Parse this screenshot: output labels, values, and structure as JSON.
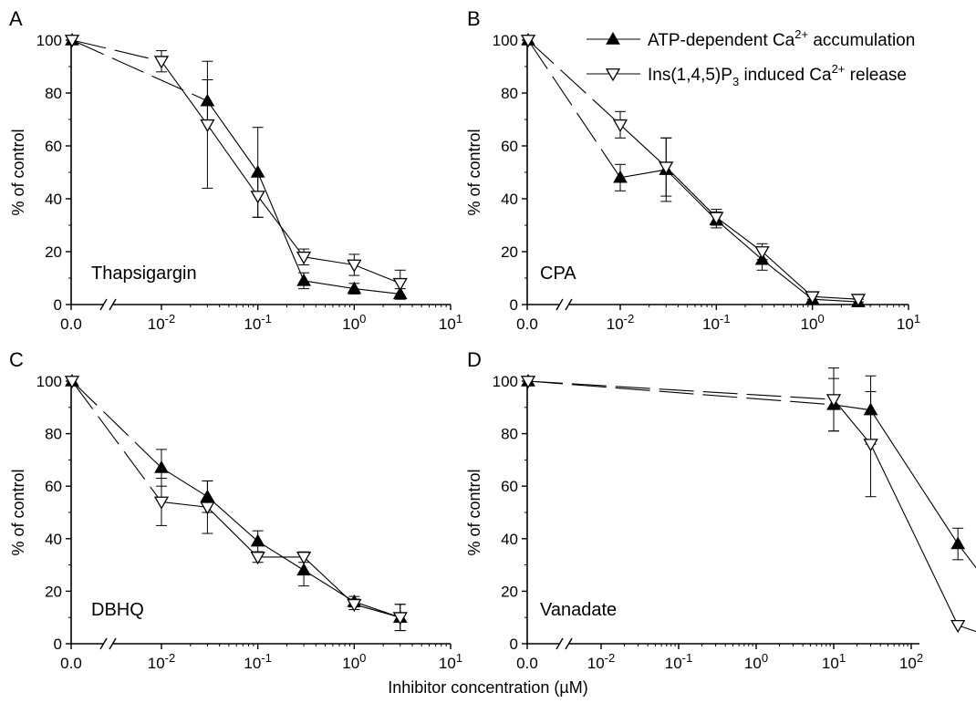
{
  "figure": {
    "xlabel": "Inhibitor concentration (µM)",
    "legend": {
      "placement": "top-right of panel B",
      "entries": [
        {
          "series": "atp",
          "prefix": "ATP-dependent Ca",
          "sup": "2+",
          "suffix": " accumulation",
          "marker": "filled-up-triangle"
        },
        {
          "series": "ins",
          "prefix": "Ins(1,4,5)P",
          "sub": "3",
          "mid": " induced Ca",
          "sup": "2+",
          "suffix": " release",
          "marker": "open-down-triangle"
        }
      ]
    }
  },
  "chart_data": [
    {
      "type": "line",
      "panel": "A",
      "title": "Thapsigargin",
      "ylabel": "% of control",
      "xscale": "log with broken axis at 0.0",
      "xlim": [
        0.005,
        10
      ],
      "ylim": [
        0,
        100
      ],
      "xticks": [
        {
          "base": "0.0",
          "exp": ""
        },
        {
          "base": "10",
          "exp": "-2"
        },
        {
          "base": "10",
          "exp": "-1"
        },
        {
          "base": "10",
          "exp": "0"
        },
        {
          "base": "10",
          "exp": "1"
        }
      ],
      "yticks": [
        "0",
        "20",
        "40",
        "60",
        "80",
        "100"
      ],
      "series": [
        {
          "key": "atp",
          "points": [
            {
              "x": 0,
              "y": 100,
              "err": 0
            },
            {
              "x": 0.03,
              "y": 77,
              "err": 8
            },
            {
              "x": 0.1,
              "y": 50,
              "err": 17
            },
            {
              "x": 0.3,
              "y": 9,
              "err": 3
            },
            {
              "x": 1,
              "y": 6,
              "err": 2
            },
            {
              "x": 3,
              "y": 4,
              "err": 2
            }
          ]
        },
        {
          "key": "ins",
          "points": [
            {
              "x": 0,
              "y": 100,
              "err": 0
            },
            {
              "x": 0.01,
              "y": 92,
              "err": 4
            },
            {
              "x": 0.03,
              "y": 68,
              "err": 24
            },
            {
              "x": 0.1,
              "y": 41,
              "err": 8
            },
            {
              "x": 0.3,
              "y": 18,
              "err": 3
            },
            {
              "x": 1,
              "y": 15,
              "err": 4
            },
            {
              "x": 3,
              "y": 8,
              "err": 5
            }
          ]
        }
      ]
    },
    {
      "type": "line",
      "panel": "B",
      "title": "CPA",
      "ylabel": "% of control",
      "xscale": "log with broken axis at 0.0",
      "xlim": [
        0.001,
        10
      ],
      "ylim": [
        0,
        100
      ],
      "xticks": [
        {
          "base": "0.0",
          "exp": ""
        },
        {
          "base": "10",
          "exp": "-2"
        },
        {
          "base": "10",
          "exp": "-1"
        },
        {
          "base": "10",
          "exp": "0"
        },
        {
          "base": "10",
          "exp": "1"
        }
      ],
      "yticks": [
        "0",
        "20",
        "40",
        "60",
        "80",
        "100"
      ],
      "series": [
        {
          "key": "atp",
          "points": [
            {
              "x": 0,
              "y": 100,
              "err": 0
            },
            {
              "x": 0.01,
              "y": 48,
              "err": 5
            },
            {
              "x": 0.03,
              "y": 51,
              "err": 12
            },
            {
              "x": 0.1,
              "y": 32,
              "err": 3
            },
            {
              "x": 0.3,
              "y": 17,
              "err": 4
            },
            {
              "x": 1,
              "y": 2,
              "err": 1
            },
            {
              "x": 3,
              "y": 1,
              "err": 1
            }
          ]
        },
        {
          "key": "ins",
          "points": [
            {
              "x": 0,
              "y": 100,
              "err": 0
            },
            {
              "x": 0.01,
              "y": 68,
              "err": 5
            },
            {
              "x": 0.03,
              "y": 52,
              "err": 11
            },
            {
              "x": 0.1,
              "y": 33,
              "err": 3
            },
            {
              "x": 0.3,
              "y": 20,
              "err": 3
            },
            {
              "x": 1,
              "y": 3,
              "err": 1
            },
            {
              "x": 3,
              "y": 2,
              "err": 1
            }
          ]
        }
      ]
    },
    {
      "type": "line",
      "panel": "C",
      "title": "DBHQ",
      "ylabel": "% of control",
      "xscale": "log with broken axis at 0.0",
      "xlim": [
        0.001,
        10
      ],
      "ylim": [
        0,
        100
      ],
      "xticks": [
        {
          "base": "0.0",
          "exp": ""
        },
        {
          "base": "10",
          "exp": "-2"
        },
        {
          "base": "10",
          "exp": "-1"
        },
        {
          "base": "10",
          "exp": "0"
        },
        {
          "base": "10",
          "exp": "1"
        }
      ],
      "yticks": [
        "0",
        "20",
        "40",
        "60",
        "80",
        "100"
      ],
      "series": [
        {
          "key": "atp",
          "points": [
            {
              "x": 0,
              "y": 100,
              "err": 0
            },
            {
              "x": 0.01,
              "y": 67,
              "err": 7
            },
            {
              "x": 0.03,
              "y": 56,
              "err": 6
            },
            {
              "x": 0.1,
              "y": 39,
              "err": 4
            },
            {
              "x": 0.3,
              "y": 28,
              "err": 6
            },
            {
              "x": 1,
              "y": 16,
              "err": 2
            },
            {
              "x": 3,
              "y": 10,
              "err": 5
            }
          ]
        },
        {
          "key": "ins",
          "points": [
            {
              "x": 0,
              "y": 100,
              "err": 0
            },
            {
              "x": 0.01,
              "y": 54,
              "err": 9
            },
            {
              "x": 0.03,
              "y": 52,
              "err": 10
            },
            {
              "x": 0.1,
              "y": 33,
              "err": 2
            },
            {
              "x": 0.3,
              "y": 33,
              "err": 2
            },
            {
              "x": 1,
              "y": 15,
              "err": 2
            },
            {
              "x": 3,
              "y": 10,
              "err": 5
            }
          ]
        }
      ]
    },
    {
      "type": "line",
      "panel": "D",
      "title": "Vanadate",
      "ylabel": "% of control",
      "xscale": "log with broken axis at 0.0",
      "xlim": [
        0.001,
        3000
      ],
      "ylim": [
        0,
        100
      ],
      "xticks": [
        {
          "base": "0.0",
          "exp": ""
        },
        {
          "base": "10",
          "exp": "-2"
        },
        {
          "base": "10",
          "exp": "-1"
        },
        {
          "base": "10",
          "exp": "0"
        },
        {
          "base": "10",
          "exp": "1"
        },
        {
          "base": "10",
          "exp": "2"
        },
        {
          "base": "10",
          "exp": "3"
        }
      ],
      "yticks": [
        "0",
        "20",
        "40",
        "60",
        "80",
        "100"
      ],
      "series": [
        {
          "key": "atp",
          "points": [
            {
              "x": 0,
              "y": 100,
              "err": 0
            },
            {
              "x": 10,
              "y": 91,
              "err": 10
            },
            {
              "x": 30,
              "y": 89,
              "err": 13
            },
            {
              "x": 400,
              "y": 38,
              "err": 6
            },
            {
              "x": 2000,
              "y": 11,
              "err": 1
            }
          ]
        },
        {
          "key": "ins",
          "points": [
            {
              "x": 0,
              "y": 100,
              "err": 0
            },
            {
              "x": 10,
              "y": 93,
              "err": 12
            },
            {
              "x": 30,
              "y": 76,
              "err": 20
            },
            {
              "x": 400,
              "y": 7,
              "err": 0
            },
            {
              "x": 2000,
              "y": 0,
              "err": 0
            }
          ]
        }
      ]
    }
  ]
}
